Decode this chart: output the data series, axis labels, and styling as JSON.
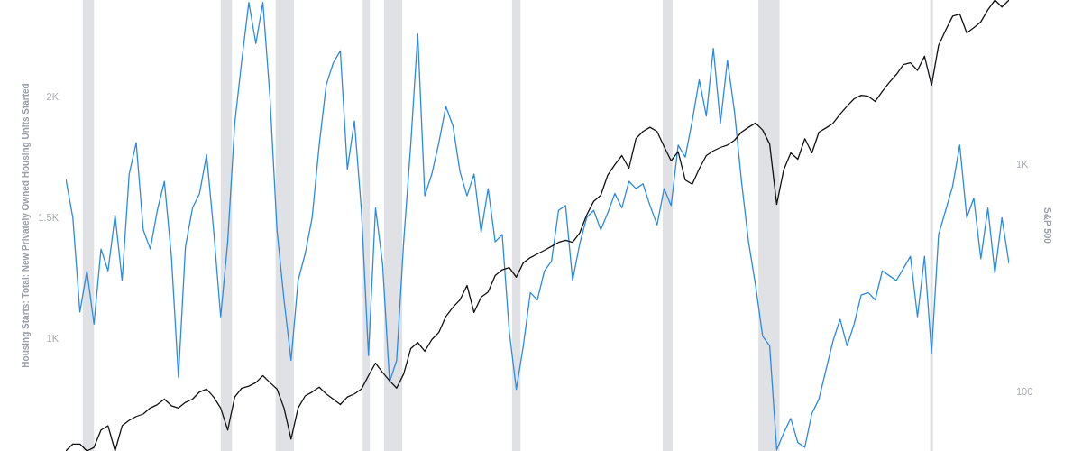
{
  "chart_data": {
    "type": "line",
    "ylabel": "Housing Starts: Total: New Privately Owned Housing Units Started",
    "y2label": "S&P 500",
    "categories": [
      null,
      null,
      null,
      null,
      null,
      null,
      null,
      null,
      null,
      null,
      null,
      null,
      null,
      null,
      null,
      null,
      null,
      null,
      null,
      null,
      null,
      null,
      null,
      null,
      null,
      null,
      null,
      null,
      null,
      null,
      null,
      null,
      null,
      null,
      null,
      null,
      null,
      null,
      null,
      null,
      null,
      null,
      null,
      null,
      null,
      null,
      null,
      null,
      null,
      null,
      null,
      null,
      null,
      null,
      null,
      null,
      null,
      null,
      null,
      null,
      null,
      null,
      null,
      null,
      null,
      null,
      null,
      null,
      null,
      null,
      null,
      null,
      null,
      null,
      null,
      null,
      null,
      null,
      null,
      null,
      null,
      null,
      null,
      null,
      null,
      null,
      null,
      null,
      null,
      null,
      null,
      null,
      null,
      null,
      null,
      null,
      null,
      null,
      null,
      null,
      null,
      null,
      null,
      null,
      null,
      null,
      null,
      null,
      null,
      null,
      null,
      null,
      null,
      null,
      null,
      null,
      null,
      null,
      null,
      null,
      null,
      null,
      null,
      null,
      null,
      null,
      null,
      null,
      null,
      null,
      null,
      null,
      null,
      null,
      null
    ],
    "ylim": [
      535,
      2400
    ],
    "yticks": [
      {
        "value": 1000,
        "label": "1K"
      },
      {
        "value": 1500,
        "label": "1.5K"
      },
      {
        "value": 2000,
        "label": "2K"
      }
    ],
    "y2lim": [
      55,
      5300
    ],
    "y2ticks": [
      {
        "value": 100,
        "label": "100"
      },
      {
        "value": 1000,
        "label": "1K"
      }
    ],
    "log": "y2",
    "tick_labels": "y",
    "series": [
      {
        "color": "#2b8ae6",
        "values": [
          1660,
          1500,
          1110,
          1280,
          1060,
          1370,
          1280,
          1510,
          1240,
          1680,
          1810,
          1450,
          1370,
          1530,
          1650,
          1340,
          840,
          1380,
          1540,
          1600,
          1760,
          1450,
          1090,
          1400,
          1890,
          2150,
          2390,
          2220,
          2390,
          2000,
          1450,
          1160,
          910,
          1240,
          1350,
          1500,
          1800,
          2050,
          2140,
          2190,
          1700,
          1900,
          1530,
          930,
          1540,
          1310,
          820,
          910,
          1400,
          1800,
          2260,
          1590,
          1680,
          1810,
          1960,
          1880,
          1690,
          1590,
          1680,
          1440,
          1620,
          1400,
          1430,
          1030,
          790,
          970,
          1190,
          1160,
          1280,
          1320,
          1530,
          1550,
          1240,
          1390,
          1500,
          1530,
          1450,
          1520,
          1600,
          1540,
          1650,
          1620,
          1640,
          1550,
          1470,
          1620,
          1550,
          1800,
          1750,
          1900,
          2070,
          1920,
          2200,
          1890,
          2150,
          1940,
          1650,
          1400,
          1220,
          1010,
          970,
          540,
          610,
          670,
          570,
          550,
          690,
          750,
          870,
          990,
          1080,
          970,
          1060,
          1180,
          1190,
          1160,
          1280,
          1260,
          1240,
          1290,
          1340,
          1090,
          1340,
          940,
          1430,
          1530,
          1630,
          1800,
          1500,
          1580,
          1330,
          1540,
          1270,
          1500,
          1310
        ]
      },
      {
        "axis": "y2",
        "color": "#111111",
        "values": [
          55,
          59,
          59,
          55,
          57,
          68,
          71,
          55,
          71,
          75,
          78,
          80,
          85,
          88,
          93,
          87,
          85,
          90,
          93,
          100,
          103,
          95,
          85,
          68,
          95,
          104,
          106,
          110,
          118,
          110,
          103,
          85,
          62,
          85,
          96,
          100,
          105,
          98,
          93,
          88,
          95,
          98,
          103,
          118,
          134,
          122,
          112,
          104,
          120,
          155,
          165,
          151,
          170,
          183,
          215,
          236,
          254,
          294,
          224,
          261,
          275,
          325,
          345,
          353,
          320,
          370,
          390,
          405,
          420,
          437,
          455,
          465,
          455,
          500,
          600,
          690,
          733,
          900,
          1000,
          1096,
          964,
          1300,
          1400,
          1460,
          1400,
          1200,
          1040,
          1140,
          857,
          820,
          960,
          1096,
          1150,
          1190,
          1220,
          1280,
          1390,
          1460,
          1524,
          1420,
          1233,
          669,
          950,
          1127,
          1057,
          1300,
          1127,
          1390,
          1450,
          1520,
          1667,
          1810,
          1949,
          2020,
          2000,
          1897,
          2100,
          2300,
          2494,
          2756,
          2807,
          2600,
          3000,
          2234,
          3350,
          3900,
          4500,
          4600,
          3800,
          4000,
          4250,
          4800,
          5300,
          4940,
          5300
        ]
      }
    ]
  }
}
